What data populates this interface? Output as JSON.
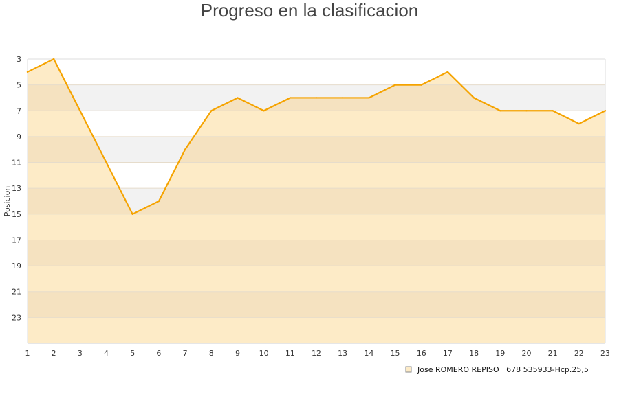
{
  "chart_data": {
    "type": "area",
    "title": "Progreso en la clasificacion",
    "ylabel": "Posicion",
    "xlabel": "",
    "x": [
      1,
      2,
      3,
      4,
      5,
      6,
      7,
      8,
      9,
      10,
      11,
      12,
      13,
      14,
      15,
      16,
      17,
      18,
      19,
      20,
      21,
      22,
      23
    ],
    "series": [
      {
        "name": "Jose ROMERO REPISO   678 535933-Hcp.25,5",
        "values": [
          4,
          3,
          7,
          11,
          15,
          14,
          10,
          7,
          6,
          7,
          6,
          6,
          6,
          6,
          5,
          5,
          4,
          6,
          7,
          7,
          7,
          8,
          7
        ],
        "color": "#f5a300"
      }
    ],
    "ylim": [
      3,
      25
    ],
    "y_inverted": true,
    "y_ticks": [
      3,
      5,
      7,
      9,
      11,
      13,
      15,
      17,
      19,
      21,
      23
    ],
    "xlim": [
      1,
      23
    ],
    "grid": true,
    "legend_position": "bottom-right",
    "colors": {
      "line": "#f5a300",
      "fill": "#fdebc7",
      "band_light": "#ffffff",
      "band_dark": "#f2f2f2",
      "band_fill_light": "#fdebc7",
      "band_fill_dark": "#f5e2c0"
    }
  }
}
